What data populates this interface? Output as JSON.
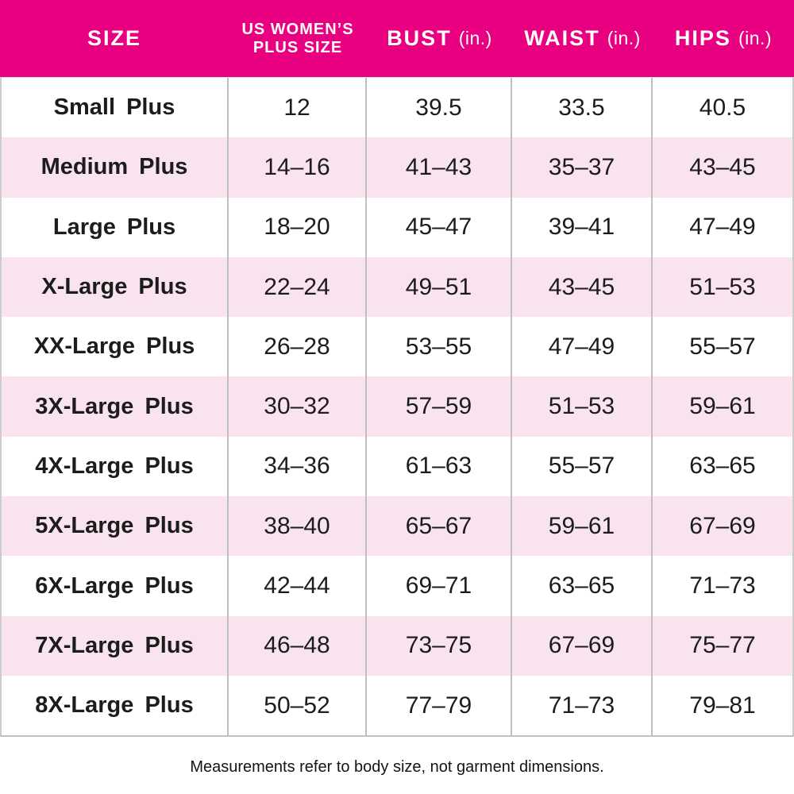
{
  "header": {
    "col_size": "SIZE",
    "col_plus_line1": "US WOMEN’S",
    "col_plus_line2": "PLUS SIZE",
    "col_bust": "BUST",
    "col_bust_unit": "(in.)",
    "col_waist": "WAIST",
    "col_waist_unit": "(in.)",
    "col_hips": "HIPS",
    "col_hips_unit": "(in.)"
  },
  "table": {
    "rows": [
      {
        "size": "Small Plus",
        "plus_size": "12",
        "bust": "39.5",
        "waist": "33.5",
        "hips": "40.5"
      },
      {
        "size": "Medium Plus",
        "plus_size": "14–16",
        "bust": "41–43",
        "waist": "35–37",
        "hips": "43–45"
      },
      {
        "size": "Large Plus",
        "plus_size": "18–20",
        "bust": "45–47",
        "waist": "39–41",
        "hips": "47–49"
      },
      {
        "size": "X-Large Plus",
        "plus_size": "22–24",
        "bust": "49–51",
        "waist": "43–45",
        "hips": "51–53"
      },
      {
        "size": "XX-Large Plus",
        "plus_size": "26–28",
        "bust": "53–55",
        "waist": "47–49",
        "hips": "55–57"
      },
      {
        "size": "3X-Large Plus",
        "plus_size": "30–32",
        "bust": "57–59",
        "waist": "51–53",
        "hips": "59–61"
      },
      {
        "size": "4X-Large Plus",
        "plus_size": "34–36",
        "bust": "61–63",
        "waist": "55–57",
        "hips": "63–65"
      },
      {
        "size": "5X-Large Plus",
        "plus_size": "38–40",
        "bust": "65–67",
        "waist": "59–61",
        "hips": "67–69"
      },
      {
        "size": "6X-Large Plus",
        "plus_size": "42–44",
        "bust": "69–71",
        "waist": "63–65",
        "hips": "71–73"
      },
      {
        "size": "7X-Large Plus",
        "plus_size": "46–48",
        "bust": "73–75",
        "waist": "67–69",
        "hips": "75–77"
      },
      {
        "size": "8X-Large Plus",
        "plus_size": "50–52",
        "bust": "77–79",
        "waist": "71–73",
        "hips": "79–81"
      }
    ]
  },
  "footer": {
    "note": "Measurements refer to body size, not garment dimensions."
  },
  "colors": {
    "header_bg": "#E80080",
    "header_text": "#FFFFFF",
    "row_alt_bg": "#F9E3EE",
    "border_outer": "#CCCCCC",
    "border_col": "#BFBFBF",
    "text": "#1C1C1C"
  },
  "chart_data": {
    "type": "table",
    "title": "Plus Size Measurement Chart",
    "columns": [
      "SIZE",
      "US WOMEN’S PLUS SIZE",
      "BUST (in.)",
      "WAIST (in.)",
      "HIPS (in.)"
    ],
    "rows": [
      [
        "Small Plus",
        "12",
        "39.5",
        "33.5",
        "40.5"
      ],
      [
        "Medium Plus",
        "14–16",
        "41–43",
        "35–37",
        "43–45"
      ],
      [
        "Large Plus",
        "18–20",
        "45–47",
        "39–41",
        "47–49"
      ],
      [
        "X-Large Plus",
        "22–24",
        "49–51",
        "43–45",
        "51–53"
      ],
      [
        "XX-Large Plus",
        "26–28",
        "53–55",
        "47–49",
        "55–57"
      ],
      [
        "3X-Large Plus",
        "30–32",
        "57–59",
        "51–53",
        "59–61"
      ],
      [
        "4X-Large Plus",
        "34–36",
        "61–63",
        "55–57",
        "63–65"
      ],
      [
        "5X-Large Plus",
        "38–40",
        "65–67",
        "59–61",
        "67–69"
      ],
      [
        "6X-Large Plus",
        "42–44",
        "69–71",
        "63–65",
        "71–73"
      ],
      [
        "7X-Large Plus",
        "46–48",
        "73–75",
        "67–69",
        "75–77"
      ],
      [
        "8X-Large Plus",
        "50–52",
        "77–79",
        "71–73",
        "79–81"
      ]
    ],
    "annotation": "Measurements refer to body size, not garment dimensions.",
    "layout": {
      "header_bg": "#E80080",
      "alt_row_bg": "#F9E3EE",
      "row_striping": "even rows pink"
    }
  }
}
